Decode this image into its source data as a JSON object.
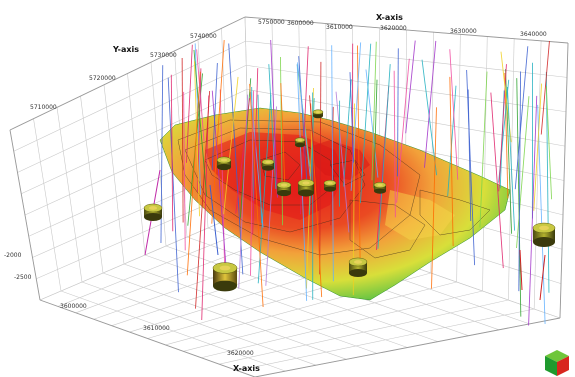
{
  "viewer": {
    "axes": {
      "x": {
        "title": "X-axis",
        "bottom_title": "X-axis",
        "top_ticks": [
          "3600000",
          "3610000",
          "3620000",
          "3630000",
          "3640000"
        ],
        "bottom_ticks": [
          "3600000",
          "3610000",
          "3620000"
        ]
      },
      "y": {
        "title": "Y-axis",
        "ticks": [
          "5750000",
          "5740000",
          "5730000",
          "5720000",
          "5710000"
        ]
      },
      "z": {
        "ticks": [
          "-2000",
          "-2500"
        ]
      }
    },
    "colors": {
      "surface_high": "#e3201a",
      "surface_mid": "#f2a13a",
      "surface_low": "#d8df3a",
      "surface_edge": "#4fbf45",
      "grid": "#c9c9c9"
    },
    "icons": {
      "well_marker": "cylinder-well-icon",
      "orientation": "orientation-cube-icon"
    }
  }
}
